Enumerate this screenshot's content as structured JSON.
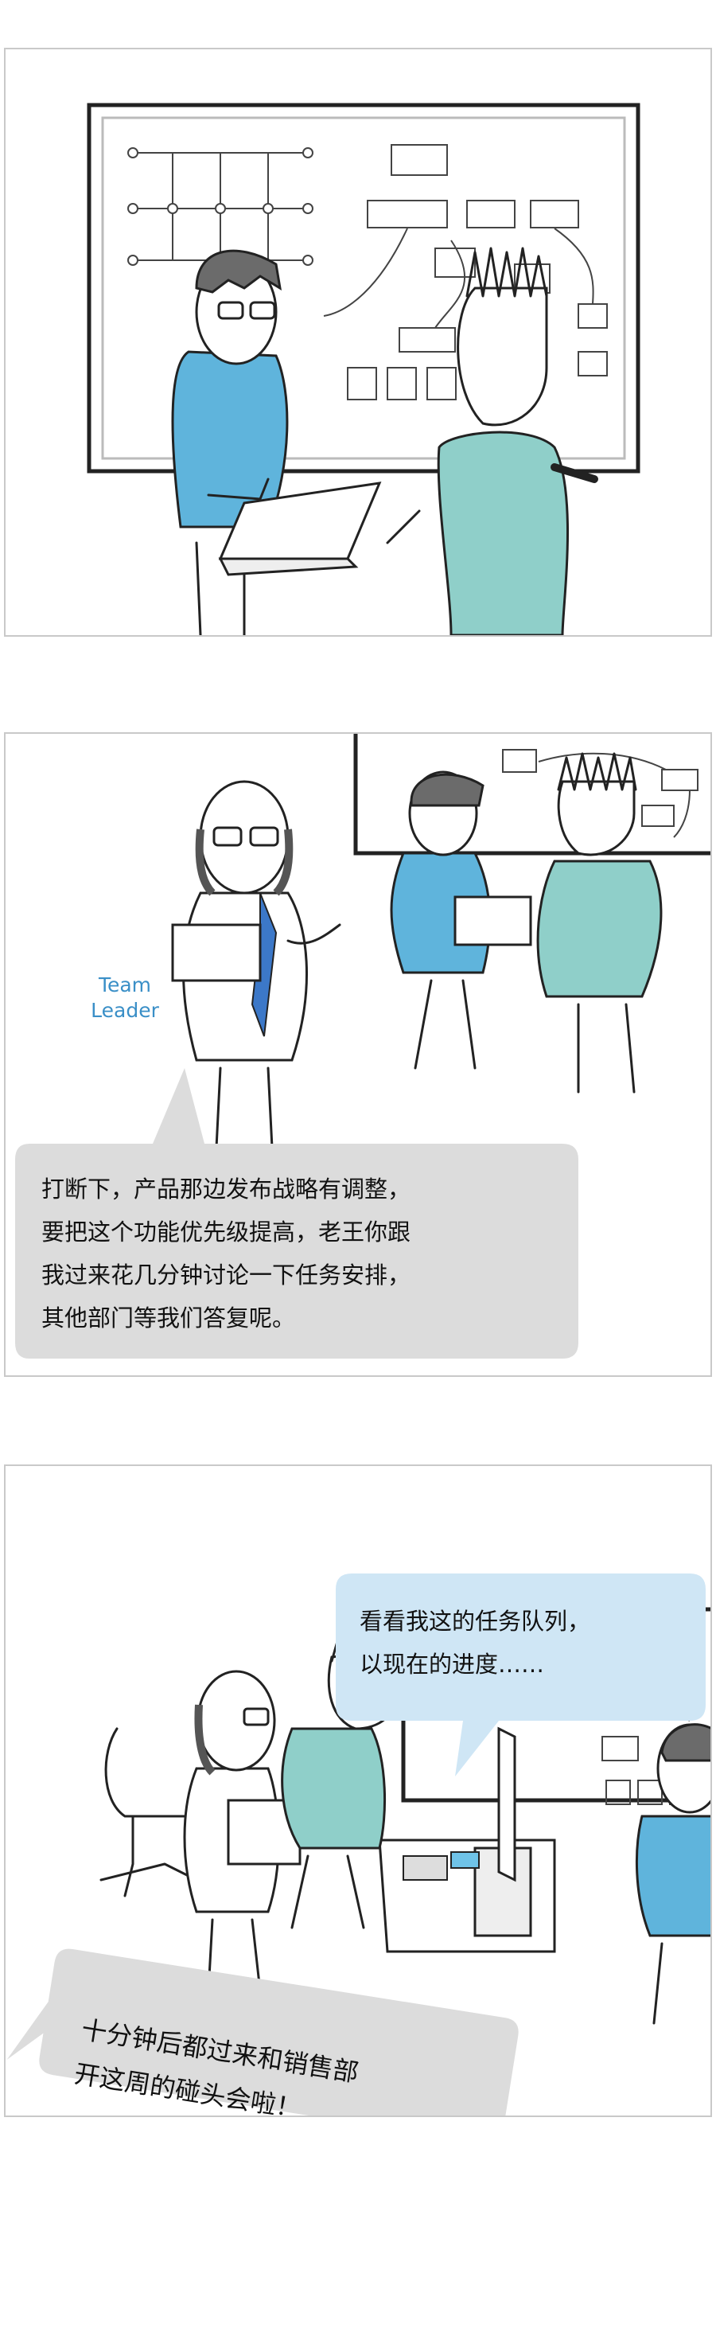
{
  "panel2": {
    "label_team_leader": "Team\nLeader",
    "speech": "打断下，产品那边发布战略有调整，\n要把这个功能优先级提高，老王你跟\n我过来花几分钟讨论一下任务安排，\n其他部门等我们答复呢。"
  },
  "panel3": {
    "speech_top": "看看我这的任务队列，\n以现在的进度……",
    "speech_bottom": "十分钟后都过来和销售部\n开这周的碰头会啦！"
  },
  "colors": {
    "shirt_blue": "#5fb4dc",
    "shirt_teal_plaid": "#8fcfc9",
    "bubble_gray": "#dcdcdc",
    "bubble_blue": "#cfe6f5",
    "team_leader_text": "#3a8fc7"
  }
}
